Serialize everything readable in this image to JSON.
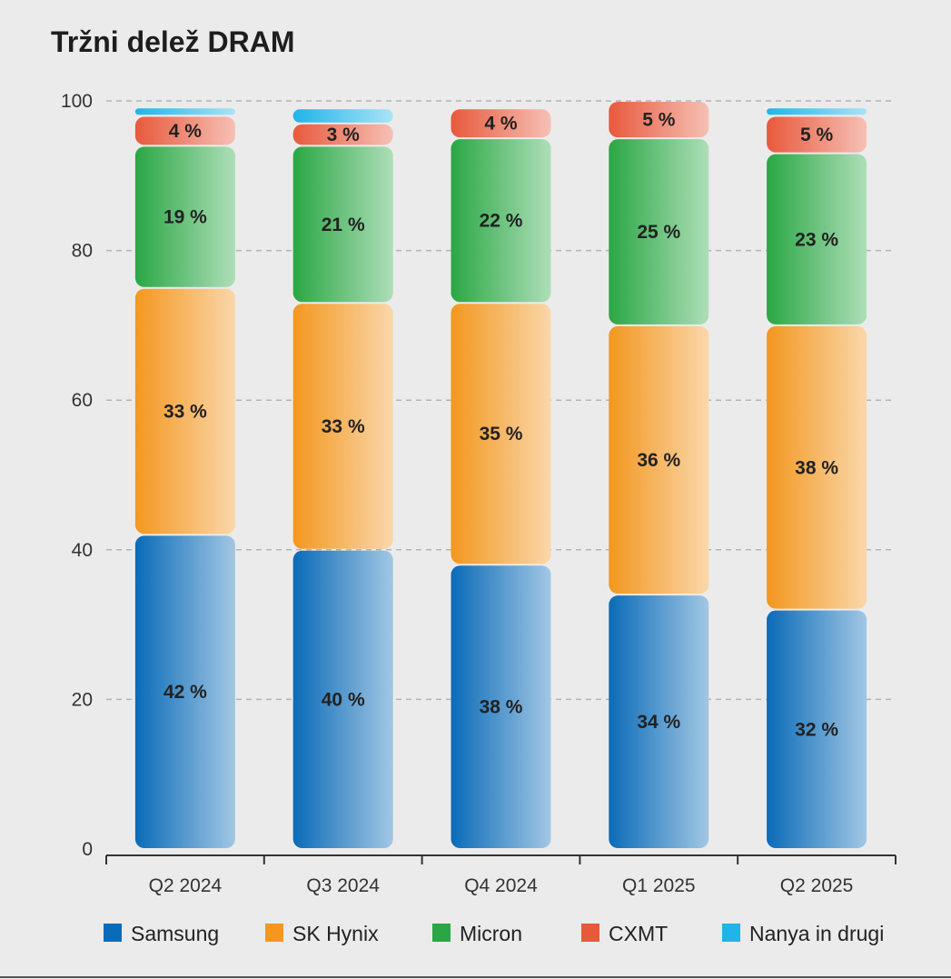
{
  "chart_data": {
    "type": "bar",
    "stacked": true,
    "title": "Tržni delež DRAM",
    "categories": [
      "Q2 2024",
      "Q3 2024",
      "Q4 2024",
      "Q1 2025",
      "Q2 2025"
    ],
    "y_ticks": [
      "0",
      "20",
      "40",
      "60",
      "80",
      "100"
    ],
    "ylim": [
      0,
      100
    ],
    "grid": "horizontal dashed",
    "legend_position": "bottom",
    "series": [
      {
        "name": "Samsung",
        "color": "#0a6bb8",
        "values": [
          42,
          40,
          38,
          34,
          32
        ],
        "labels": [
          "42 %",
          "40 %",
          "38 %",
          "34 %",
          "32 %"
        ]
      },
      {
        "name": "SK Hynix",
        "color": "#f3971f",
        "values": [
          33,
          33,
          35,
          36,
          38
        ],
        "labels": [
          "33 %",
          "33 %",
          "35 %",
          "36 %",
          "38 %"
        ]
      },
      {
        "name": "Micron",
        "color": "#2aa744",
        "values": [
          19,
          21,
          22,
          25,
          23
        ],
        "labels": [
          "19 %",
          "21 %",
          "22 %",
          "25 %",
          "23 %"
        ]
      },
      {
        "name": "CXMT",
        "color": "#e8593c",
        "values": [
          4,
          3,
          4,
          5,
          5
        ],
        "labels": [
          "4 %",
          "3 %",
          "4 %",
          "5 %",
          "5 %"
        ]
      },
      {
        "name": "Nanya in drugi",
        "color": "#20b4e8",
        "values": [
          1,
          2,
          0,
          0,
          1
        ],
        "labels": [
          "",
          "",
          "",
          "",
          ""
        ]
      }
    ]
  }
}
